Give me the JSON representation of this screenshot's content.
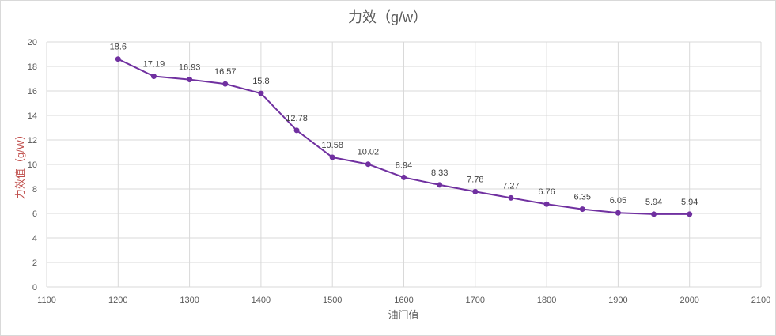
{
  "chart_data": {
    "type": "line",
    "title": "力效（g/w）",
    "xlabel": "油门值",
    "ylabel": "力效值（g/W）",
    "xlim": [
      1100,
      2100
    ],
    "ylim": [
      0,
      20
    ],
    "xticks": [
      1100,
      1200,
      1300,
      1400,
      1500,
      1600,
      1700,
      1800,
      1900,
      2000,
      2100
    ],
    "yticks": [
      0,
      2,
      4,
      6,
      8,
      10,
      12,
      14,
      16,
      18,
      20
    ],
    "grid": true,
    "series": [
      {
        "name": "力效",
        "color": "#7030a0",
        "x": [
          1200,
          1250,
          1300,
          1350,
          1400,
          1450,
          1500,
          1550,
          1600,
          1650,
          1700,
          1750,
          1800,
          1850,
          1900,
          1950,
          2000
        ],
        "values": [
          18.6,
          17.19,
          16.93,
          16.57,
          15.8,
          12.78,
          10.58,
          10.02,
          8.94,
          8.33,
          7.78,
          7.27,
          6.76,
          6.35,
          6.05,
          5.94,
          5.94
        ]
      }
    ]
  }
}
